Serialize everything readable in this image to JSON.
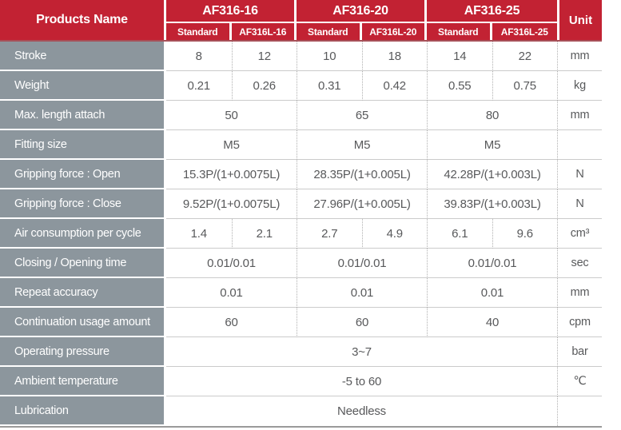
{
  "colors": {
    "header_red": "#c22233",
    "header_edge": "#a75058",
    "label_gray": "#8c969d",
    "data_text": "#58595b",
    "separator": "#cbcbcb",
    "table_border": "#9a9a9a"
  },
  "header": {
    "products_name": "Products Name",
    "unit_label": "Unit",
    "groups": [
      {
        "name": "AF316-16",
        "sub": [
          "Standard",
          "AF316L-16"
        ]
      },
      {
        "name": "AF316-20",
        "sub": [
          "Standard",
          "AF316L-20"
        ]
      },
      {
        "name": "AF316-25",
        "sub": [
          "Standard",
          "AF316L-25"
        ]
      }
    ]
  },
  "rows": [
    {
      "label": "Stroke",
      "merge": "none",
      "values": [
        "8",
        "12",
        "10",
        "18",
        "14",
        "22"
      ],
      "unit": "mm"
    },
    {
      "label": "Weight",
      "merge": "none",
      "values": [
        "0.21",
        "0.26",
        "0.31",
        "0.42",
        "0.55",
        "0.75"
      ],
      "unit": "kg"
    },
    {
      "label": "Max. length attach",
      "merge": "group",
      "values": [
        "50",
        "65",
        "80"
      ],
      "unit": "mm"
    },
    {
      "label": "Fitting size",
      "merge": "group",
      "values": [
        "M5",
        "M5",
        "M5"
      ],
      "unit": ""
    },
    {
      "label": "Gripping force : Open",
      "merge": "group",
      "values": [
        "15.3P/(1+0.0075L)",
        "28.35P/(1+0.005L)",
        "42.28P/(1+0.003L)"
      ],
      "unit": "N"
    },
    {
      "label": "Gripping force : Close",
      "merge": "group",
      "values": [
        "9.52P/(1+0.0075L)",
        "27.96P/(1+0.005L)",
        "39.83P/(1+0.003L)"
      ],
      "unit": "N"
    },
    {
      "label": "Air consumption per cycle",
      "merge": "none",
      "values": [
        "1.4",
        "2.1",
        "2.7",
        "4.9",
        "6.1",
        "9.6"
      ],
      "unit": "cm³"
    },
    {
      "label": "Closing / Opening time",
      "merge": "group",
      "values": [
        "0.01/0.01",
        "0.01/0.01",
        "0.01/0.01"
      ],
      "unit": "sec"
    },
    {
      "label": "Repeat accuracy",
      "merge": "group",
      "values": [
        "0.01",
        "0.01",
        "0.01"
      ],
      "unit": "mm"
    },
    {
      "label": "Continuation usage amount",
      "merge": "group",
      "values": [
        "60",
        "60",
        "40"
      ],
      "unit": "cpm"
    },
    {
      "label": "Operating pressure",
      "merge": "full",
      "values": [
        "3~7"
      ],
      "unit": "bar"
    },
    {
      "label": "Ambient temperature",
      "merge": "full",
      "values": [
        "-5 to 60"
      ],
      "unit": "℃"
    },
    {
      "label": "Lubrication",
      "merge": "full",
      "values": [
        "Needless"
      ],
      "unit": ""
    }
  ]
}
